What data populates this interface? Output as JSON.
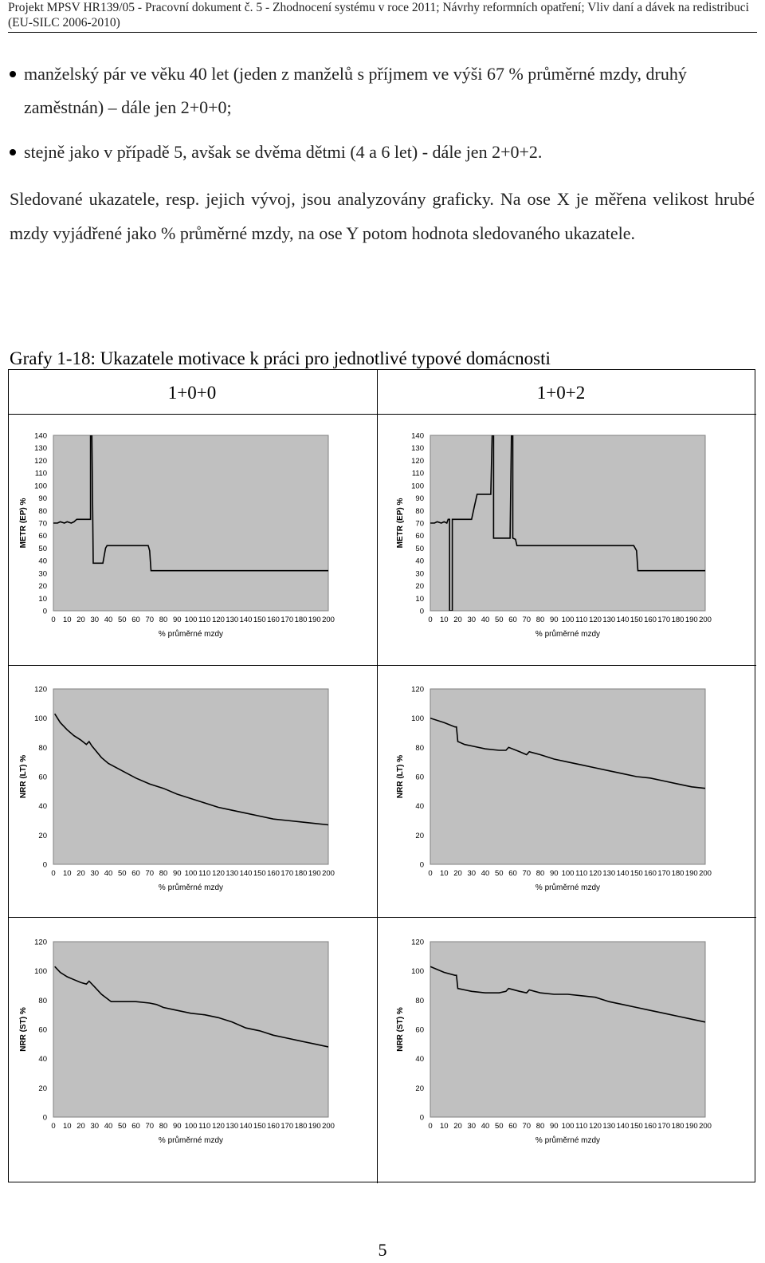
{
  "header": {
    "text": "Projekt MPSV HR139/05 - Pracovní dokument č. 5 - Zhodnocení systému v roce 2011; Návrhy reformních opatření; Vliv daní a dávek na redistribuci (EU-SILC 2006-2010)"
  },
  "bullets": [
    "manželský pár ve věku 40 let (jeden z manželů s příjmem ve výši 67 % průměrné mzdy, druhý zaměstnán) – dále jen 2+0+0;",
    "stejně jako v případě 5, avšak se dvěma dětmi (4 a 6 let) - dále jen 2+0+2."
  ],
  "paragraph": "Sledované ukazatele, resp. jejich vývoj, jsou analyzovány graficky. Na ose X je měřena velikost hrubé mzdy vyjádřené jako % průměrné mzdy, na ose Y potom hodnota sledovaného ukazatele.",
  "figure_title": "Grafy 1-18: Ukazatele motivace k práci pro jednotlivé typové domácnosti",
  "columns": [
    "1+0+0",
    "1+0+2"
  ],
  "page_number": "5",
  "chart_data": [
    {
      "id": "metr-left",
      "type": "line",
      "xlabel": "% průměrné mzdy",
      "ylabel": "METR (EP) %",
      "xlim": [
        0,
        200
      ],
      "ylim": [
        0,
        140
      ],
      "xticks": [
        0,
        10,
        20,
        30,
        40,
        50,
        60,
        70,
        80,
        90,
        100,
        110,
        120,
        130,
        140,
        150,
        160,
        170,
        180,
        190,
        200
      ],
      "yticks": [
        0,
        10,
        20,
        30,
        40,
        50,
        60,
        70,
        80,
        90,
        100,
        110,
        120,
        130,
        140
      ],
      "series": [
        {
          "points": [
            [
              0,
              70
            ],
            [
              3,
              70
            ],
            [
              5,
              71
            ],
            [
              8,
              70
            ],
            [
              10,
              71
            ],
            [
              13,
              70
            ],
            [
              15,
              71
            ],
            [
              17,
              73
            ],
            [
              19,
              73
            ],
            [
              25,
              73
            ],
            [
              27,
              73
            ],
            [
              27,
              140
            ],
            [
              28,
              140
            ],
            [
              29,
              38
            ],
            [
              35,
              38
            ],
            [
              36,
              38
            ],
            [
              38,
              50
            ],
            [
              39,
              52
            ],
            [
              55,
              52
            ],
            [
              66,
              52
            ],
            [
              69,
              52
            ],
            [
              70,
              48
            ],
            [
              71,
              32
            ],
            [
              90,
              32
            ],
            [
              200,
              32
            ]
          ]
        }
      ]
    },
    {
      "id": "metr-right",
      "type": "line",
      "xlabel": "% průměrné mzdy",
      "ylabel": "METR (EP) %",
      "xlim": [
        0,
        200
      ],
      "ylim": [
        0,
        140
      ],
      "xticks": [
        0,
        10,
        20,
        30,
        40,
        50,
        60,
        70,
        80,
        90,
        100,
        110,
        120,
        130,
        140,
        150,
        160,
        170,
        180,
        190,
        200
      ],
      "yticks": [
        0,
        10,
        20,
        30,
        40,
        50,
        60,
        70,
        80,
        90,
        100,
        110,
        120,
        130,
        140
      ],
      "series": [
        {
          "points": [
            [
              0,
              70
            ],
            [
              3,
              70
            ],
            [
              5,
              71
            ],
            [
              8,
              70
            ],
            [
              10,
              71
            ],
            [
              12,
              70
            ],
            [
              13,
              73
            ],
            [
              14,
              73
            ],
            [
              14,
              0
            ],
            [
              16,
              0
            ],
            [
              16,
              73
            ],
            [
              30,
              73
            ],
            [
              32,
              83
            ],
            [
              34,
              93
            ],
            [
              40,
              93
            ],
            [
              44,
              93
            ],
            [
              45,
              140
            ],
            [
              46,
              140
            ],
            [
              46,
              58
            ],
            [
              58,
              58
            ],
            [
              59,
              140
            ],
            [
              60,
              140
            ],
            [
              60,
              58
            ],
            [
              62,
              57
            ],
            [
              63,
              52
            ],
            [
              100,
              52
            ],
            [
              148,
              52
            ],
            [
              150,
              48
            ],
            [
              151,
              32
            ],
            [
              200,
              32
            ]
          ]
        }
      ]
    },
    {
      "id": "nrr-lt-left",
      "type": "line",
      "xlabel": "% průměrné mzdy",
      "ylabel": "NRR (LT) %",
      "xlim": [
        0,
        200
      ],
      "ylim": [
        0,
        120
      ],
      "xticks": [
        0,
        10,
        20,
        30,
        40,
        50,
        60,
        70,
        80,
        90,
        100,
        110,
        120,
        130,
        140,
        150,
        160,
        170,
        180,
        190,
        200
      ],
      "yticks": [
        0,
        20,
        40,
        60,
        80,
        100,
        120
      ],
      "series": [
        {
          "points": [
            [
              1,
              103
            ],
            [
              5,
              97
            ],
            [
              10,
              92
            ],
            [
              15,
              88
            ],
            [
              20,
              85
            ],
            [
              24,
              82
            ],
            [
              26,
              84
            ],
            [
              28,
              81
            ],
            [
              35,
              73
            ],
            [
              40,
              69
            ],
            [
              50,
              64
            ],
            [
              60,
              59
            ],
            [
              70,
              55
            ],
            [
              80,
              52
            ],
            [
              90,
              48
            ],
            [
              100,
              45
            ],
            [
              110,
              42
            ],
            [
              120,
              39
            ],
            [
              130,
              37
            ],
            [
              140,
              35
            ],
            [
              150,
              33
            ],
            [
              160,
              31
            ],
            [
              170,
              30
            ],
            [
              180,
              29
            ],
            [
              190,
              28
            ],
            [
              200,
              27
            ]
          ]
        }
      ]
    },
    {
      "id": "nrr-lt-right",
      "type": "line",
      "xlabel": "% průměrné mzdy",
      "ylabel": "NRR (LT) %",
      "xlim": [
        0,
        200
      ],
      "ylim": [
        0,
        120
      ],
      "xticks": [
        0,
        10,
        20,
        30,
        40,
        50,
        60,
        70,
        80,
        90,
        100,
        110,
        120,
        130,
        140,
        150,
        160,
        170,
        180,
        190,
        200
      ],
      "yticks": [
        0,
        20,
        40,
        60,
        80,
        100,
        120
      ],
      "series": [
        {
          "points": [
            [
              0,
              100
            ],
            [
              10,
              97
            ],
            [
              18,
              94
            ],
            [
              19,
              94
            ],
            [
              20,
              84
            ],
            [
              25,
              82
            ],
            [
              30,
              81
            ],
            [
              40,
              79
            ],
            [
              50,
              78
            ],
            [
              55,
              78
            ],
            [
              57,
              80
            ],
            [
              65,
              77
            ],
            [
              70,
              75
            ],
            [
              72,
              77
            ],
            [
              80,
              75
            ],
            [
              90,
              72
            ],
            [
              100,
              70
            ],
            [
              110,
              68
            ],
            [
              120,
              66
            ],
            [
              130,
              64
            ],
            [
              140,
              62
            ],
            [
              150,
              60
            ],
            [
              160,
              59
            ],
            [
              170,
              57
            ],
            [
              180,
              55
            ],
            [
              190,
              53
            ],
            [
              200,
              52
            ]
          ]
        }
      ]
    },
    {
      "id": "nrr-st-left",
      "type": "line",
      "xlabel": "% průměrné mzdy",
      "ylabel": "NRR (ST) %",
      "xlim": [
        0,
        200
      ],
      "ylim": [
        0,
        120
      ],
      "xticks": [
        0,
        10,
        20,
        30,
        40,
        50,
        60,
        70,
        80,
        90,
        100,
        110,
        120,
        130,
        140,
        150,
        160,
        170,
        180,
        190,
        200
      ],
      "yticks": [
        0,
        20,
        40,
        60,
        80,
        100,
        120
      ],
      "series": [
        {
          "points": [
            [
              1,
              103
            ],
            [
              5,
              99
            ],
            [
              10,
              96
            ],
            [
              15,
              94
            ],
            [
              20,
              92
            ],
            [
              24,
              91
            ],
            [
              26,
              93
            ],
            [
              30,
              89
            ],
            [
              35,
              84
            ],
            [
              42,
              79
            ],
            [
              50,
              79
            ],
            [
              60,
              79
            ],
            [
              70,
              78
            ],
            [
              75,
              77
            ],
            [
              80,
              75
            ],
            [
              90,
              73
            ],
            [
              100,
              71
            ],
            [
              110,
              70
            ],
            [
              120,
              68
            ],
            [
              130,
              65
            ],
            [
              140,
              61
            ],
            [
              150,
              59
            ],
            [
              160,
              56
            ],
            [
              170,
              54
            ],
            [
              180,
              52
            ],
            [
              190,
              50
            ],
            [
              200,
              48
            ]
          ]
        }
      ]
    },
    {
      "id": "nrr-st-right",
      "type": "line",
      "xlabel": "% průměrné mzdy",
      "ylabel": "NRR (ST) %",
      "xlim": [
        0,
        200
      ],
      "ylim": [
        0,
        120
      ],
      "xticks": [
        0,
        10,
        20,
        30,
        40,
        50,
        60,
        70,
        80,
        90,
        100,
        110,
        120,
        130,
        140,
        150,
        160,
        170,
        180,
        190,
        200
      ],
      "yticks": [
        0,
        20,
        40,
        60,
        80,
        100,
        120
      ],
      "series": [
        {
          "points": [
            [
              0,
              103
            ],
            [
              10,
              99
            ],
            [
              18,
              97
            ],
            [
              19,
              97
            ],
            [
              20,
              88
            ],
            [
              25,
              87
            ],
            [
              30,
              86
            ],
            [
              40,
              85
            ],
            [
              50,
              85
            ],
            [
              55,
              86
            ],
            [
              57,
              88
            ],
            [
              65,
              86
            ],
            [
              70,
              85
            ],
            [
              72,
              87
            ],
            [
              80,
              85
            ],
            [
              90,
              84
            ],
            [
              100,
              84
            ],
            [
              110,
              83
            ],
            [
              120,
              82
            ],
            [
              130,
              79
            ],
            [
              140,
              77
            ],
            [
              150,
              75
            ],
            [
              160,
              73
            ],
            [
              170,
              71
            ],
            [
              180,
              69
            ],
            [
              190,
              67
            ],
            [
              200,
              65
            ]
          ]
        }
      ]
    }
  ]
}
